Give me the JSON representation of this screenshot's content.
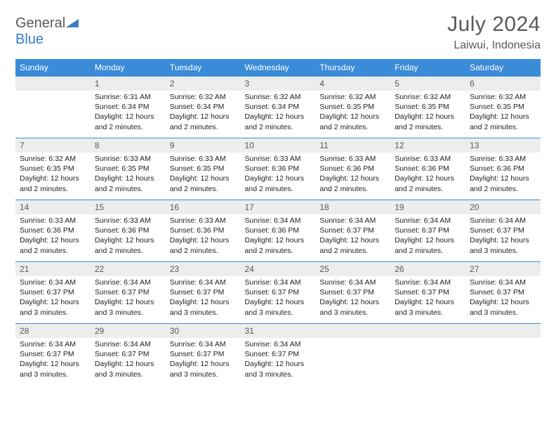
{
  "brand": {
    "part1": "General",
    "part2": "Blue"
  },
  "title": {
    "month": "July 2024",
    "location": "Laiwui, Indonesia"
  },
  "colors": {
    "header_bg": "#3a8bd8",
    "header_text": "#ffffff",
    "daynum_bg": "#eceded",
    "text_muted": "#58595b",
    "text_body": "#222222",
    "brand_blue": "#3a7cc5",
    "row_border": "#3a8bd8"
  },
  "fonts": {
    "title_size": 30,
    "location_size": 16,
    "dayhead_size": 12,
    "body_size": 10.5
  },
  "layout": {
    "columns": 7,
    "rows": 5,
    "first_day_column": 1
  },
  "day_headers": [
    "Sunday",
    "Monday",
    "Tuesday",
    "Wednesday",
    "Thursday",
    "Friday",
    "Saturday"
  ],
  "days": [
    {
      "n": "1",
      "sunrise": "6:31 AM",
      "sunset": "6:34 PM",
      "daylight": "12 hours and 2 minutes."
    },
    {
      "n": "2",
      "sunrise": "6:32 AM",
      "sunset": "6:34 PM",
      "daylight": "12 hours and 2 minutes."
    },
    {
      "n": "3",
      "sunrise": "6:32 AM",
      "sunset": "6:34 PM",
      "daylight": "12 hours and 2 minutes."
    },
    {
      "n": "4",
      "sunrise": "6:32 AM",
      "sunset": "6:35 PM",
      "daylight": "12 hours and 2 minutes."
    },
    {
      "n": "5",
      "sunrise": "6:32 AM",
      "sunset": "6:35 PM",
      "daylight": "12 hours and 2 minutes."
    },
    {
      "n": "6",
      "sunrise": "6:32 AM",
      "sunset": "6:35 PM",
      "daylight": "12 hours and 2 minutes."
    },
    {
      "n": "7",
      "sunrise": "6:32 AM",
      "sunset": "6:35 PM",
      "daylight": "12 hours and 2 minutes."
    },
    {
      "n": "8",
      "sunrise": "6:33 AM",
      "sunset": "6:35 PM",
      "daylight": "12 hours and 2 minutes."
    },
    {
      "n": "9",
      "sunrise": "6:33 AM",
      "sunset": "6:35 PM",
      "daylight": "12 hours and 2 minutes."
    },
    {
      "n": "10",
      "sunrise": "6:33 AM",
      "sunset": "6:36 PM",
      "daylight": "12 hours and 2 minutes."
    },
    {
      "n": "11",
      "sunrise": "6:33 AM",
      "sunset": "6:36 PM",
      "daylight": "12 hours and 2 minutes."
    },
    {
      "n": "12",
      "sunrise": "6:33 AM",
      "sunset": "6:36 PM",
      "daylight": "12 hours and 2 minutes."
    },
    {
      "n": "13",
      "sunrise": "6:33 AM",
      "sunset": "6:36 PM",
      "daylight": "12 hours and 2 minutes."
    },
    {
      "n": "14",
      "sunrise": "6:33 AM",
      "sunset": "6:36 PM",
      "daylight": "12 hours and 2 minutes."
    },
    {
      "n": "15",
      "sunrise": "6:33 AM",
      "sunset": "6:36 PM",
      "daylight": "12 hours and 2 minutes."
    },
    {
      "n": "16",
      "sunrise": "6:33 AM",
      "sunset": "6:36 PM",
      "daylight": "12 hours and 2 minutes."
    },
    {
      "n": "17",
      "sunrise": "6:34 AM",
      "sunset": "6:36 PM",
      "daylight": "12 hours and 2 minutes."
    },
    {
      "n": "18",
      "sunrise": "6:34 AM",
      "sunset": "6:37 PM",
      "daylight": "12 hours and 2 minutes."
    },
    {
      "n": "19",
      "sunrise": "6:34 AM",
      "sunset": "6:37 PM",
      "daylight": "12 hours and 2 minutes."
    },
    {
      "n": "20",
      "sunrise": "6:34 AM",
      "sunset": "6:37 PM",
      "daylight": "12 hours and 3 minutes."
    },
    {
      "n": "21",
      "sunrise": "6:34 AM",
      "sunset": "6:37 PM",
      "daylight": "12 hours and 3 minutes."
    },
    {
      "n": "22",
      "sunrise": "6:34 AM",
      "sunset": "6:37 PM",
      "daylight": "12 hours and 3 minutes."
    },
    {
      "n": "23",
      "sunrise": "6:34 AM",
      "sunset": "6:37 PM",
      "daylight": "12 hours and 3 minutes."
    },
    {
      "n": "24",
      "sunrise": "6:34 AM",
      "sunset": "6:37 PM",
      "daylight": "12 hours and 3 minutes."
    },
    {
      "n": "25",
      "sunrise": "6:34 AM",
      "sunset": "6:37 PM",
      "daylight": "12 hours and 3 minutes."
    },
    {
      "n": "26",
      "sunrise": "6:34 AM",
      "sunset": "6:37 PM",
      "daylight": "12 hours and 3 minutes."
    },
    {
      "n": "27",
      "sunrise": "6:34 AM",
      "sunset": "6:37 PM",
      "daylight": "12 hours and 3 minutes."
    },
    {
      "n": "28",
      "sunrise": "6:34 AM",
      "sunset": "6:37 PM",
      "daylight": "12 hours and 3 minutes."
    },
    {
      "n": "29",
      "sunrise": "6:34 AM",
      "sunset": "6:37 PM",
      "daylight": "12 hours and 3 minutes."
    },
    {
      "n": "30",
      "sunrise": "6:34 AM",
      "sunset": "6:37 PM",
      "daylight": "12 hours and 3 minutes."
    },
    {
      "n": "31",
      "sunrise": "6:34 AM",
      "sunset": "6:37 PM",
      "daylight": "12 hours and 3 minutes."
    }
  ],
  "labels": {
    "sunrise": "Sunrise:",
    "sunset": "Sunset:",
    "daylight": "Daylight:"
  }
}
